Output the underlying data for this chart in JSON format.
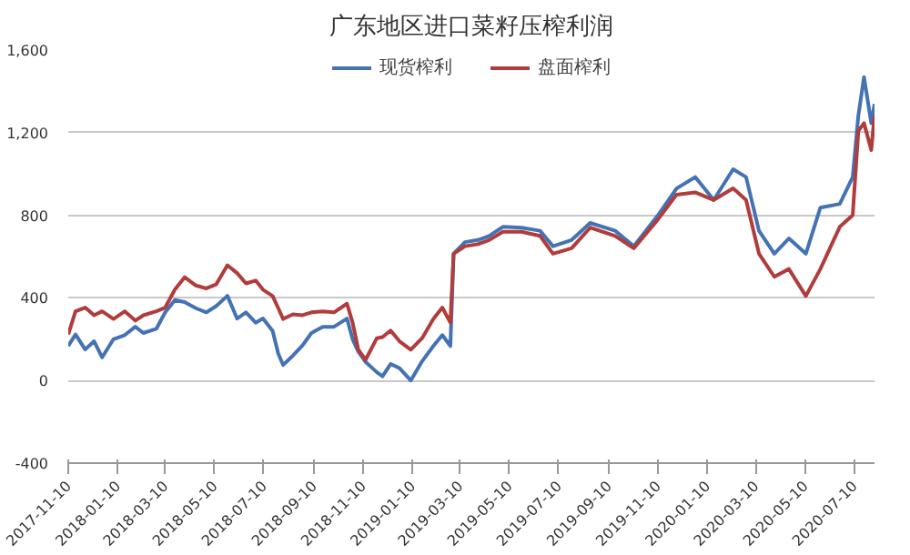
{
  "chart_data": {
    "type": "line",
    "title": "广东地区进口菜籽压榨利润",
    "x": [
      "2017-11-10",
      "2017-11-19",
      "2017-12-01",
      "2017-12-12",
      "2017-12-22",
      "2018-01-05",
      "2018-01-19",
      "2018-02-01",
      "2018-02-11",
      "2018-02-27",
      "2018-03-10",
      "2018-03-22",
      "2018-04-03",
      "2018-04-17",
      "2018-04-30",
      "2018-05-12",
      "2018-05-26",
      "2018-06-07",
      "2018-06-18",
      "2018-06-30",
      "2018-07-09",
      "2018-07-21",
      "2018-07-28",
      "2018-08-03",
      "2018-08-15",
      "2018-08-27",
      "2018-09-07",
      "2018-09-21",
      "2018-10-05",
      "2018-10-21",
      "2018-10-28",
      "2018-11-04",
      "2018-11-13",
      "2018-11-27",
      "2018-12-04",
      "2018-12-14",
      "2018-12-25",
      "2019-01-08",
      "2019-01-22",
      "2019-02-05",
      "2019-02-16",
      "2019-02-26",
      "2019-03-02",
      "2019-03-16",
      "2019-04-01",
      "2019-04-15",
      "2019-05-02",
      "2019-05-25",
      "2019-06-17",
      "2019-07-03",
      "2019-07-26",
      "2019-08-18",
      "2019-09-18",
      "2019-10-11",
      "2019-11-10",
      "2019-12-03",
      "2019-12-26",
      "2020-01-18",
      "2020-02-11",
      "2020-02-27",
      "2020-03-14",
      "2020-04-02",
      "2020-04-20",
      "2020-05-11",
      "2020-05-29",
      "2020-06-22",
      "2020-07-08",
      "2020-07-15",
      "2020-07-22",
      "2020-07-31",
      "2020-08-04"
    ],
    "series": [
      {
        "name": "现货榨利",
        "color": "#4472b4",
        "values": [
          167,
          223,
          150,
          190,
          112,
          200,
          220,
          260,
          230,
          250,
          330,
          390,
          380,
          350,
          330,
          360,
          410,
          300,
          330,
          280,
          300,
          240,
          130,
          75,
          120,
          170,
          230,
          260,
          260,
          300,
          200,
          140,
          90,
          40,
          20,
          80,
          60,
          0,
          93,
          167,
          220,
          167,
          614,
          670,
          680,
          700,
          744,
          740,
          725,
          650,
          680,
          763,
          725,
          650,
          800,
          930,
          985,
          874,
          1023,
          985,
          725,
          614,
          688,
          614,
          837,
          855,
          985,
          1283,
          1469,
          1246,
          1339
        ]
      },
      {
        "name": "盘面榨利",
        "color": "#b03c3c",
        "values": [
          223,
          335,
          353,
          316,
          335,
          298,
          335,
          290,
          316,
          335,
          353,
          440,
          500,
          460,
          446,
          465,
          558,
          520,
          470,
          484,
          440,
          409,
          350,
          298,
          320,
          316,
          330,
          335,
          330,
          372,
          280,
          150,
          100,
          205,
          210,
          242,
          190,
          149,
          205,
          298,
          353,
          280,
          614,
          650,
          660,
          680,
          720,
          720,
          700,
          614,
          640,
          740,
          700,
          640,
          780,
          900,
          911,
          874,
          930,
          874,
          614,
          502,
          540,
          409,
          540,
          744,
          800,
          1209,
          1246,
          1116,
          1283
        ]
      }
    ],
    "xlim": [
      "2017-11-10",
      "2020-08-04"
    ],
    "xticks": [
      "2017-11-10",
      "2018-01-10",
      "2018-03-10",
      "2018-05-10",
      "2018-07-10",
      "2018-09-10",
      "2018-11-10",
      "2019-01-10",
      "2019-03-10",
      "2019-05-10",
      "2019-07-10",
      "2019-09-10",
      "2019-11-10",
      "2020-01-10",
      "2020-03-10",
      "2020-05-10",
      "2020-07-10"
    ],
    "ylim": [
      -400,
      1600
    ],
    "yticks": [
      {
        "value": -400,
        "label": "-400"
      },
      0,
      {
        "value": 400,
        "label": "400"
      },
      {
        "value": 800,
        "label": "800"
      },
      {
        "value": 1200,
        "label": "1,200"
      },
      {
        "value": 1600,
        "label": "1,600"
      }
    ],
    "grid": "y",
    "legend": "top"
  }
}
